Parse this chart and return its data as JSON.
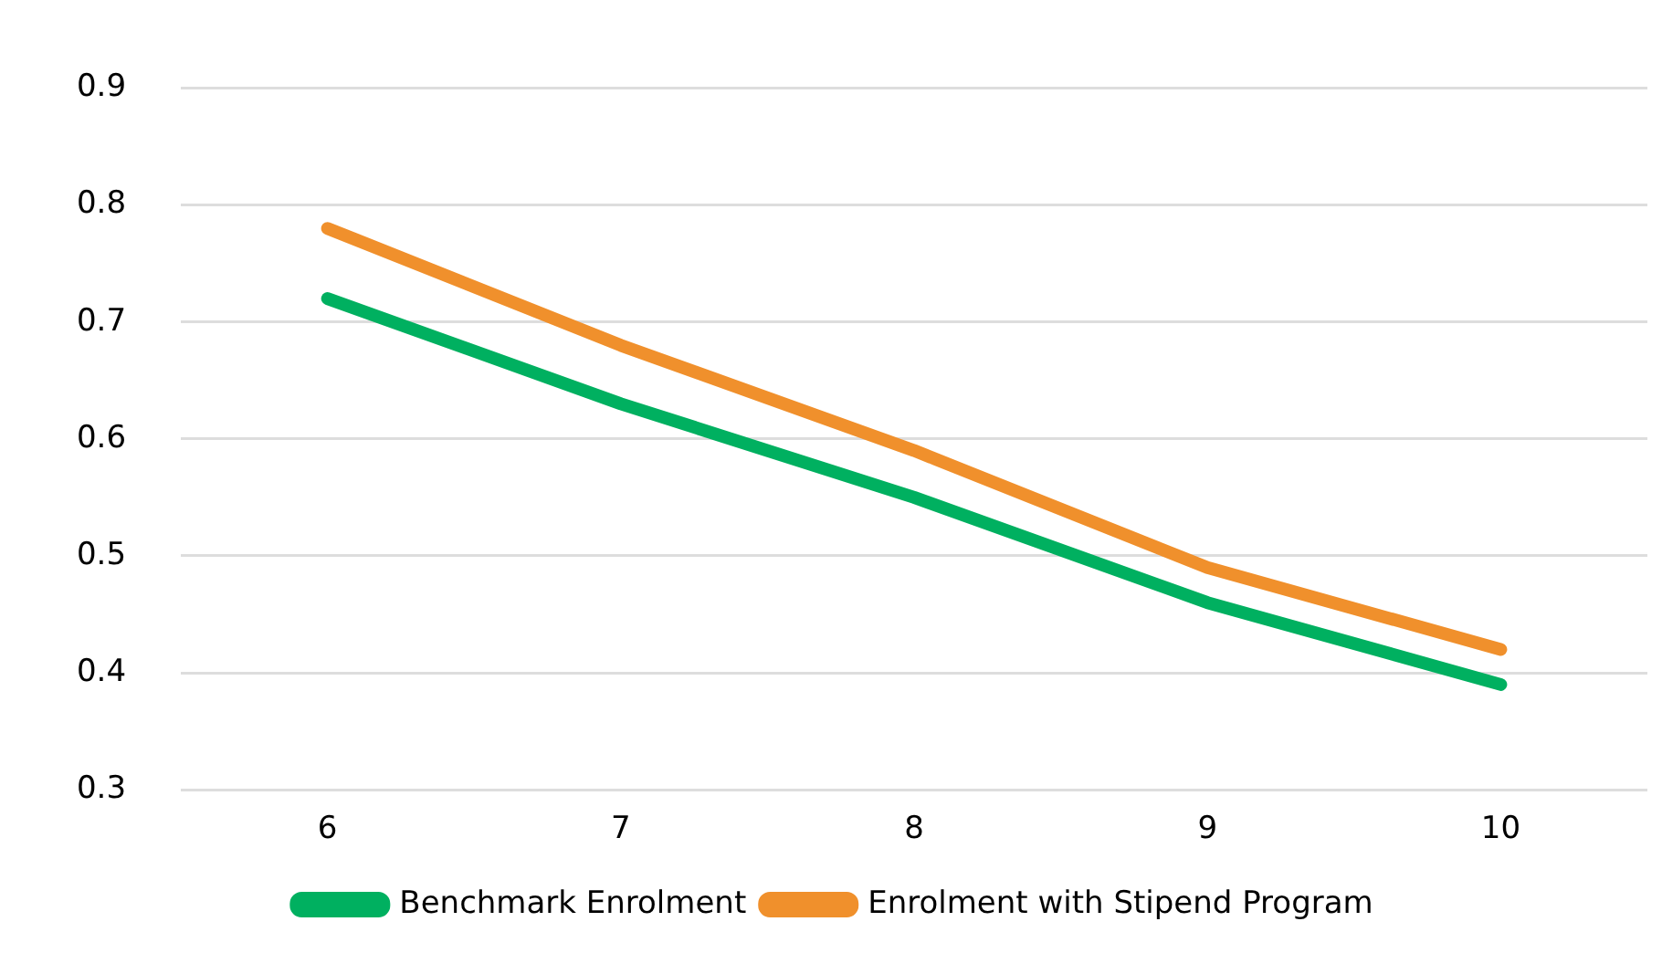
{
  "chart_data": {
    "type": "line",
    "categories": [
      "6",
      "7",
      "8",
      "9",
      "10"
    ],
    "series": [
      {
        "name": "Benchmark Enrolment",
        "color": "#00b060",
        "values": [
          0.72,
          0.63,
          0.55,
          0.46,
          0.39
        ]
      },
      {
        "name": "Enrolment with Stipend Program",
        "color": "#f0902c",
        "values": [
          0.78,
          0.68,
          0.59,
          0.49,
          0.42
        ]
      }
    ],
    "ylim": [
      0.3,
      0.9
    ],
    "yticks": [
      0.3,
      0.4,
      0.5,
      0.6,
      0.7,
      0.8,
      0.9
    ],
    "grid": "y",
    "legend": "bottom",
    "marker": "none"
  }
}
